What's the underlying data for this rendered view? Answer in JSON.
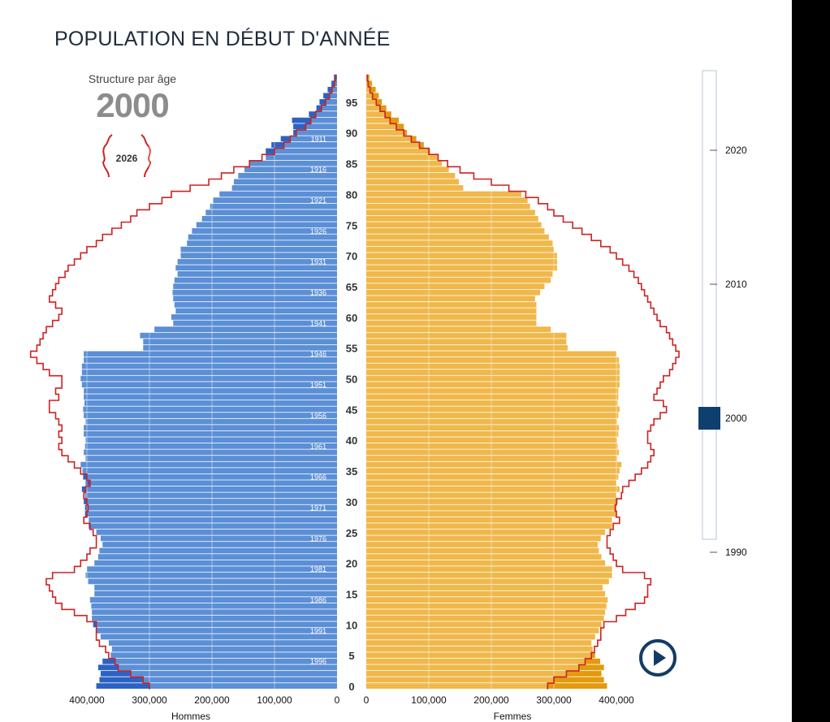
{
  "title": "POPULATION EN DÉBUT D'ANNÉE",
  "structure": {
    "label": "Structure par âge",
    "year": "2000"
  },
  "legend_outline": {
    "year": "2026"
  },
  "slider": {
    "ticks": [
      "2020",
      "2010",
      "2000",
      "1990"
    ],
    "selected": "2000",
    "min": 1990,
    "max": 2025
  },
  "play_icon": "play-icon",
  "colors": {
    "men": "#5b8fd6",
    "men_excess": "#2c62c4",
    "women": "#f0b84a",
    "women_excess": "#e39a0c",
    "outline": "#cc2222",
    "slider_thumb": "#0f3f6e",
    "play": "#143b66"
  },
  "chart_data": {
    "type": "bar",
    "orientation": "horizontal-pyramid",
    "title": "POPULATION EN DÉBUT D'ANNÉE",
    "xlabel_left": "Hommes",
    "xlabel_right": "Femmes",
    "x_ticks_left": [
      "400,000",
      "300,000",
      "200,000",
      "100,000",
      "0"
    ],
    "x_ticks_right": [
      "0",
      "100,000",
      "200,000",
      "300,000",
      "400,000"
    ],
    "xlim": [
      0,
      450000
    ],
    "age_ticks": [
      0,
      5,
      10,
      15,
      20,
      25,
      30,
      35,
      40,
      45,
      50,
      55,
      60,
      65,
      70,
      75,
      80,
      85,
      90,
      95
    ],
    "birth_year_labels": [
      {
        "age": 4,
        "label": "1996"
      },
      {
        "age": 9,
        "label": "1991"
      },
      {
        "age": 14,
        "label": "1986"
      },
      {
        "age": 19,
        "label": "1981"
      },
      {
        "age": 24,
        "label": "1976"
      },
      {
        "age": 29,
        "label": "1971"
      },
      {
        "age": 34,
        "label": "1966"
      },
      {
        "age": 39,
        "label": "1961"
      },
      {
        "age": 44,
        "label": "1956"
      },
      {
        "age": 49,
        "label": "1951"
      },
      {
        "age": 54,
        "label": "1946"
      },
      {
        "age": 59,
        "label": "1941"
      },
      {
        "age": 64,
        "label": "1936"
      },
      {
        "age": 69,
        "label": "1931"
      },
      {
        "age": 74,
        "label": "1926"
      },
      {
        "age": 79,
        "label": "1921"
      },
      {
        "age": 84,
        "label": "1916"
      },
      {
        "age": 89,
        "label": "1911"
      }
    ],
    "ages": [
      0,
      1,
      2,
      3,
      4,
      5,
      6,
      7,
      8,
      9,
      10,
      11,
      12,
      13,
      14,
      15,
      16,
      17,
      18,
      19,
      20,
      21,
      22,
      23,
      24,
      25,
      26,
      27,
      28,
      29,
      30,
      31,
      32,
      33,
      34,
      35,
      36,
      37,
      38,
      39,
      40,
      41,
      42,
      43,
      44,
      45,
      46,
      47,
      48,
      49,
      50,
      51,
      52,
      53,
      54,
      55,
      56,
      57,
      58,
      59,
      60,
      61,
      62,
      63,
      64,
      65,
      66,
      67,
      68,
      69,
      70,
      71,
      72,
      73,
      74,
      75,
      76,
      77,
      78,
      79,
      80,
      81,
      82,
      83,
      84,
      85,
      86,
      87,
      88,
      89,
      90,
      91,
      92,
      93,
      94,
      95,
      96,
      97,
      98,
      99
    ],
    "series": [
      {
        "name": "Hommes",
        "year": "2000",
        "values": [
          385000,
          380000,
          378000,
          382000,
          375000,
          362000,
          360000,
          365000,
          378000,
          385000,
          390000,
          392000,
          392000,
          393000,
          395000,
          388000,
          388000,
          398000,
          402000,
          400000,
          388000,
          382000,
          380000,
          375000,
          378000,
          385000,
          397000,
          397000,
          403000,
          403000,
          405000,
          403000,
          408000,
          402000,
          406000,
          407000,
          410000,
          402000,
          405000,
          403000,
          402000,
          405000,
          405000,
          402000,
          405000,
          406000,
          404000,
          405000,
          405000,
          408000,
          410000,
          408000,
          408000,
          405000,
          405000,
          310000,
          310000,
          315000,
          292000,
          262000,
          265000,
          258000,
          260000,
          262000,
          263000,
          262000,
          260000,
          255000,
          258000,
          255000,
          250000,
          250000,
          240000,
          238000,
          232000,
          225000,
          216000,
          210000,
          203000,
          198000,
          188000,
          168000,
          165000,
          158000,
          148000,
          140000,
          114000,
          114000,
          105000,
          90000,
          70000,
          70000,
          72000,
          45000,
          33000,
          28000,
          22000,
          15000,
          9000,
          5000
        ]
      },
      {
        "name": "Femmes",
        "year": "2000",
        "values": [
          385000,
          380000,
          376000,
          380000,
          374000,
          366000,
          362000,
          360000,
          366000,
          372000,
          376000,
          380000,
          382000,
          384000,
          386000,
          382000,
          378000,
          388000,
          393000,
          393000,
          382000,
          376000,
          372000,
          370000,
          375000,
          382000,
          393000,
          393000,
          400000,
          400000,
          402000,
          400000,
          405000,
          400000,
          403000,
          405000,
          408000,
          401000,
          404000,
          402000,
          401000,
          403000,
          404000,
          401000,
          403000,
          405000,
          402000,
          403000,
          403000,
          405000,
          405000,
          405000,
          405000,
          404000,
          400000,
          322000,
          320000,
          320000,
          295000,
          272000,
          272000,
          272000,
          272000,
          270000,
          278000,
          285000,
          295000,
          298000,
          305000,
          305000,
          305000,
          300000,
          298000,
          292000,
          285000,
          280000,
          275000,
          270000,
          262000,
          258000,
          248000,
          155000,
          148000,
          142000,
          132000,
          121000,
          115000,
          102000,
          92000,
          80000,
          65000,
          60000,
          52000,
          40000,
          32000,
          25000,
          20000,
          15000,
          9000,
          5000
        ]
      },
      {
        "name": "Hommes",
        "year": "2026",
        "values": [
          300000,
          310000,
          330000,
          350000,
          355000,
          365000,
          370000,
          380000,
          385000,
          385000,
          385000,
          400000,
          420000,
          440000,
          450000,
          455000,
          460000,
          465000,
          455000,
          420000,
          410000,
          400000,
          395000,
          385000,
          385000,
          390000,
          395000,
          405000,
          400000,
          398000,
          400000,
          405000,
          402000,
          395000,
          400000,
          410000,
          420000,
          430000,
          440000,
          445000,
          440000,
          445000,
          440000,
          445000,
          450000,
          460000,
          460000,
          445000,
          450000,
          440000,
          440000,
          460000,
          470000,
          480000,
          490000,
          480000,
          475000,
          470000,
          465000,
          455000,
          445000,
          440000,
          450000,
          460000,
          455000,
          450000,
          445000,
          435000,
          430000,
          420000,
          410000,
          400000,
          385000,
          375000,
          360000,
          345000,
          330000,
          320000,
          300000,
          280000,
          265000,
          235000,
          205000,
          185000,
          165000,
          140000,
          120000,
          100000,
          85000,
          75000,
          65000,
          50000,
          42000,
          34000,
          25000,
          18000,
          12000,
          8000,
          4000,
          2000
        ]
      },
      {
        "name": "Femmes",
        "year": "2026",
        "values": [
          290000,
          300000,
          320000,
          340000,
          350000,
          360000,
          365000,
          370000,
          375000,
          375000,
          380000,
          400000,
          415000,
          430000,
          445000,
          450000,
          450000,
          455000,
          445000,
          410000,
          400000,
          395000,
          390000,
          385000,
          385000,
          390000,
          395000,
          405000,
          400000,
          398000,
          400000,
          408000,
          410000,
          420000,
          430000,
          440000,
          450000,
          455000,
          460000,
          455000,
          450000,
          450000,
          455000,
          460000,
          470000,
          480000,
          475000,
          460000,
          465000,
          470000,
          475000,
          485000,
          490000,
          495000,
          500000,
          495000,
          490000,
          485000,
          480000,
          470000,
          465000,
          460000,
          455000,
          450000,
          445000,
          440000,
          435000,
          428000,
          420000,
          410000,
          400000,
          390000,
          375000,
          360000,
          345000,
          330000,
          315000,
          300000,
          290000,
          275000,
          255000,
          228000,
          200000,
          172000,
          150000,
          130000,
          115000,
          100000,
          85000,
          72000,
          60000,
          48000,
          38000,
          30000,
          22000,
          16000,
          10000,
          6000,
          3000,
          1500
        ]
      }
    ]
  }
}
